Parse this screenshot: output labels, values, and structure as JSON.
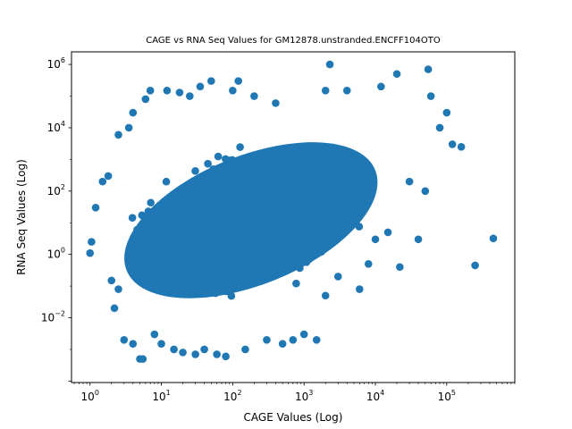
{
  "chart_data": {
    "type": "scatter",
    "title": "CAGE vs RNA Seq Values for GM12878.unstranded.ENCFF104OTO",
    "xlabel": "CAGE Values (Log)",
    "ylabel": "RNA Seq Values (Log)",
    "xscale": "log",
    "yscale": "log",
    "xlim": [
      0.55,
      900000
    ],
    "ylim": [
      9e-05,
      2500000
    ],
    "x_ticks": [
      {
        "value": 1,
        "base": "10",
        "exp": "0"
      },
      {
        "value": 10,
        "base": "10",
        "exp": "1"
      },
      {
        "value": 100,
        "base": "10",
        "exp": "2"
      },
      {
        "value": 1000,
        "base": "10",
        "exp": "3"
      },
      {
        "value": 10000,
        "base": "10",
        "exp": "4"
      },
      {
        "value": 100000,
        "base": "10",
        "exp": "5"
      }
    ],
    "y_ticks": [
      {
        "value": 0.01,
        "base": "10",
        "exp": "−2"
      },
      {
        "value": 1,
        "base": "10",
        "exp": "0"
      },
      {
        "value": 100,
        "base": "10",
        "exp": "2"
      },
      {
        "value": 10000,
        "base": "10",
        "exp": "4"
      },
      {
        "value": 1000000,
        "base": "10",
        "exp": "6"
      }
    ],
    "marker_color": "#1f77b4",
    "grid": false,
    "points": [
      {
        "x": 1.0,
        "y": 1.1
      },
      {
        "x": 1.05,
        "y": 2.5
      },
      {
        "x": 1.2,
        "y": 30
      },
      {
        "x": 1.5,
        "y": 200
      },
      {
        "x": 1.8,
        "y": 300
      },
      {
        "x": 2.0,
        "y": 0.15
      },
      {
        "x": 2.2,
        "y": 0.02
      },
      {
        "x": 2.5,
        "y": 0.08
      },
      {
        "x": 2.5,
        "y": 6000
      },
      {
        "x": 3.0,
        "y": 0.002
      },
      {
        "x": 3.5,
        "y": 10000
      },
      {
        "x": 4.0,
        "y": 30000
      },
      {
        "x": 4.0,
        "y": 0.0015
      },
      {
        "x": 5.0,
        "y": 0.0005
      },
      {
        "x": 5.5,
        "y": 0.0005
      },
      {
        "x": 6,
        "y": 80000
      },
      {
        "x": 7,
        "y": 150000
      },
      {
        "x": 8,
        "y": 0.003
      },
      {
        "x": 10,
        "y": 0.0015
      },
      {
        "x": 12,
        "y": 150000
      },
      {
        "x": 15,
        "y": 0.001
      },
      {
        "x": 18,
        "y": 130000
      },
      {
        "x": 20,
        "y": 0.0008
      },
      {
        "x": 25,
        "y": 100000
      },
      {
        "x": 30,
        "y": 0.0007
      },
      {
        "x": 35,
        "y": 200000
      },
      {
        "x": 40,
        "y": 0.001
      },
      {
        "x": 50,
        "y": 300000
      },
      {
        "x": 60,
        "y": 0.0007
      },
      {
        "x": 80,
        "y": 0.0006
      },
      {
        "x": 100,
        "y": 150000
      },
      {
        "x": 120,
        "y": 300000
      },
      {
        "x": 150,
        "y": 0.001
      },
      {
        "x": 200,
        "y": 100000
      },
      {
        "x": 300,
        "y": 0.002
      },
      {
        "x": 400,
        "y": 60000
      },
      {
        "x": 500,
        "y": 0.0015
      },
      {
        "x": 700,
        "y": 0.002
      },
      {
        "x": 1000,
        "y": 0.003
      },
      {
        "x": 1500,
        "y": 0.002
      },
      {
        "x": 2000,
        "y": 0.05
      },
      {
        "x": 2000,
        "y": 150000
      },
      {
        "x": 2300,
        "y": 1000000
      },
      {
        "x": 3000,
        "y": 0.2
      },
      {
        "x": 4000,
        "y": 150000
      },
      {
        "x": 6000,
        "y": 0.08
      },
      {
        "x": 8000,
        "y": 0.5
      },
      {
        "x": 10000,
        "y": 3
      },
      {
        "x": 12000,
        "y": 200000
      },
      {
        "x": 15000,
        "y": 5
      },
      {
        "x": 20000,
        "y": 500000
      },
      {
        "x": 22000,
        "y": 0.4
      },
      {
        "x": 30000,
        "y": 200
      },
      {
        "x": 40000,
        "y": 3
      },
      {
        "x": 50000,
        "y": 100
      },
      {
        "x": 55000,
        "y": 700000
      },
      {
        "x": 60000,
        "y": 100000
      },
      {
        "x": 80000,
        "y": 10000
      },
      {
        "x": 100000,
        "y": 30000
      },
      {
        "x": 120000,
        "y": 3000
      },
      {
        "x": 160000,
        "y": 2500
      },
      {
        "x": 250000,
        "y": 0.45
      },
      {
        "x": 450000,
        "y": 3.2
      }
    ]
  }
}
